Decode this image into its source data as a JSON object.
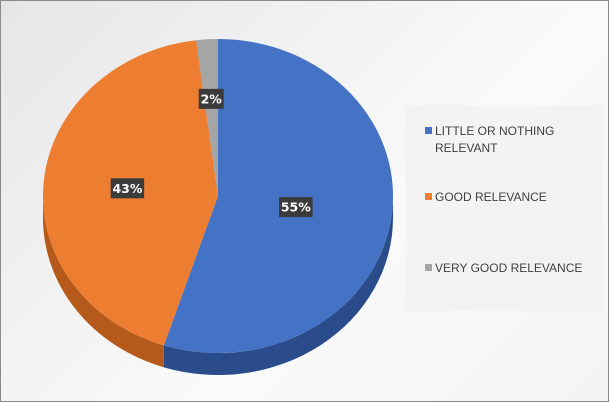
{
  "chart_data": {
    "type": "pie",
    "style": "3d",
    "categories": [
      "LITTLE OR NOTHING RELEVANT",
      "GOOD RELEVANCE",
      "VERY GOOD RELEVANCE"
    ],
    "values": [
      55,
      43,
      2
    ],
    "data_labels": [
      "55%",
      "43%",
      "2%"
    ],
    "colors": [
      "#4472c4",
      "#ed7d31",
      "#a5a5a5"
    ],
    "side_colors": [
      "#2a4c8a",
      "#b55a1b",
      "#7a7a7a"
    ],
    "legend_position": "right",
    "title": ""
  }
}
